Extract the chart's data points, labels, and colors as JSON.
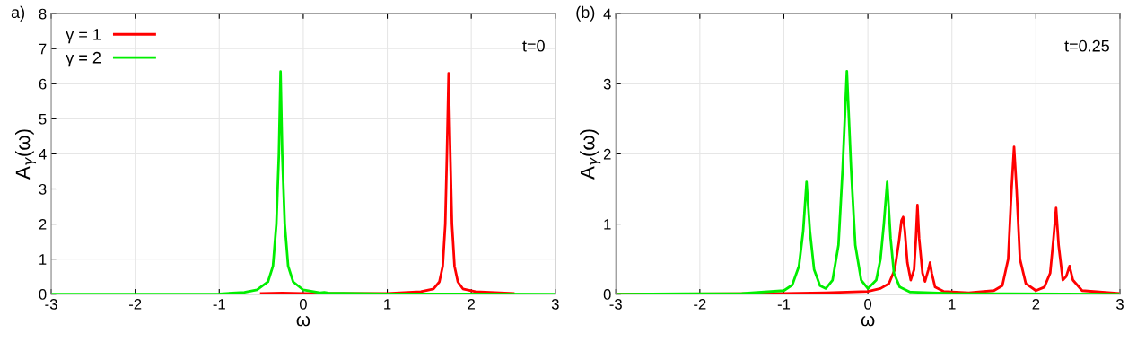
{
  "chart_data": [
    {
      "type": "line",
      "xlabel": "ω",
      "ylabel": "A$_{γ}$(ω)",
      "annotations": [
        "a)",
        "t=0"
      ],
      "xlim": [
        -3,
        3
      ],
      "xticks": [
        -3,
        -2,
        -1,
        0,
        1,
        2,
        3
      ],
      "ylim": [
        0,
        8
      ],
      "yticks": [
        0,
        1,
        2,
        3,
        4,
        5,
        6,
        7,
        8
      ],
      "grid": true,
      "legend": "top left",
      "series": [
        {
          "name": "γ = 1",
          "color": "#ff0000",
          "x": [
            -0.5,
            -0.25,
            0,
            0.5,
            1,
            1.4,
            1.55,
            1.62,
            1.66,
            1.69,
            1.71,
            1.73,
            1.75,
            1.77,
            1.8,
            1.84,
            1.9,
            2.05,
            2.5
          ],
          "values": [
            0.02,
            0.03,
            0.02,
            0.02,
            0.02,
            0.07,
            0.15,
            0.35,
            0.8,
            2.0,
            4.0,
            6.3,
            4.0,
            2.0,
            0.8,
            0.35,
            0.15,
            0.07,
            0.02
          ]
        },
        {
          "name": "γ = 2",
          "color": "#00ee00",
          "x": [
            -3,
            -1,
            -0.7,
            -0.55,
            -0.42,
            -0.36,
            -0.32,
            -0.29,
            -0.27,
            -0.25,
            -0.22,
            -0.18,
            -0.12,
            0,
            0.2,
            0.25,
            0.3,
            1,
            3
          ],
          "values": [
            0,
            0.01,
            0.05,
            0.12,
            0.35,
            0.8,
            2.0,
            4.0,
            6.35,
            4.0,
            2.0,
            0.8,
            0.35,
            0.12,
            0.04,
            0.05,
            0.03,
            0.01,
            0
          ]
        }
      ]
    },
    {
      "type": "line",
      "xlabel": "ω",
      "ylabel": "A$_{γ}$(ω)",
      "annotations": [
        "(b)",
        "t=0.25"
      ],
      "xlim": [
        -3,
        3
      ],
      "xticks": [
        -3,
        -2,
        -1,
        0,
        1,
        2,
        3
      ],
      "ylim": [
        0,
        4
      ],
      "yticks": [
        0,
        1,
        2,
        3,
        4
      ],
      "grid": true,
      "series": [
        {
          "color": "#ff0000",
          "x": [
            -3,
            -1,
            -0.5,
            0,
            0.15,
            0.25,
            0.32,
            0.37,
            0.4,
            0.42,
            0.44,
            0.47,
            0.51,
            0.55,
            0.57,
            0.59,
            0.61,
            0.65,
            0.68,
            0.72,
            0.74,
            0.76,
            0.8,
            0.9,
            1.2,
            1.5,
            1.6,
            1.67,
            1.71,
            1.74,
            1.77,
            1.81,
            1.88,
            2.0,
            2.1,
            2.17,
            2.21,
            2.24,
            2.27,
            2.32,
            2.36,
            2.4,
            2.44,
            2.55,
            3
          ],
          "values": [
            0,
            0.01,
            0.02,
            0.04,
            0.08,
            0.15,
            0.35,
            0.75,
            1.05,
            1.1,
            0.9,
            0.45,
            0.2,
            0.35,
            0.75,
            1.27,
            0.8,
            0.3,
            0.18,
            0.35,
            0.45,
            0.3,
            0.1,
            0.04,
            0.02,
            0.05,
            0.12,
            0.5,
            1.5,
            2.1,
            1.5,
            0.5,
            0.15,
            0.05,
            0.1,
            0.3,
            0.8,
            1.23,
            0.7,
            0.2,
            0.25,
            0.4,
            0.2,
            0.05,
            0.01
          ]
        },
        {
          "color": "#00ee00",
          "x": [
            -3,
            -1.5,
            -1,
            -0.9,
            -0.82,
            -0.77,
            -0.73,
            -0.69,
            -0.64,
            -0.57,
            -0.5,
            -0.42,
            -0.35,
            -0.3,
            -0.25,
            -0.2,
            -0.15,
            -0.08,
            0,
            0.1,
            0.15,
            0.19,
            0.23,
            0.27,
            0.31,
            0.38,
            0.5,
            1,
            3
          ],
          "values": [
            0,
            0.01,
            0.05,
            0.13,
            0.4,
            0.9,
            1.6,
            0.9,
            0.35,
            0.12,
            0.08,
            0.2,
            0.7,
            1.8,
            3.18,
            1.8,
            0.7,
            0.2,
            0.08,
            0.2,
            0.5,
            1.0,
            1.6,
            0.8,
            0.3,
            0.1,
            0.03,
            0.01,
            0
          ]
        }
      ]
    }
  ]
}
